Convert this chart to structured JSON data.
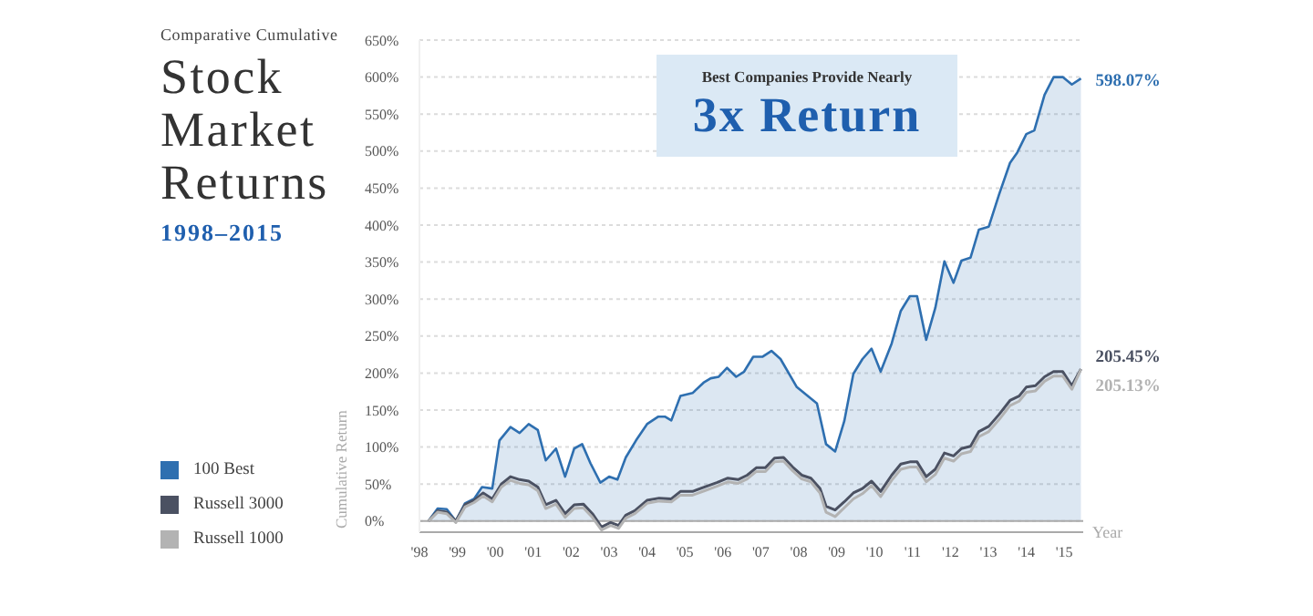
{
  "chart_data": {
    "type": "line",
    "title": "Stock Market Returns",
    "subtitle": "1998–2015",
    "ylabel": "Cumulative Return",
    "xlabel": "Year",
    "annotations": [
      "Comparative Cumulative",
      "Best Companies Provide Nearly",
      "3x Return"
    ],
    "xlim": [
      1998,
      2015.5
    ],
    "ylim": [
      -15,
      650
    ],
    "ref_lines": [
      {
        "axis": "y",
        "value": 0,
        "color": "#aaaaaa"
      }
    ],
    "xticks": [
      {
        "value": 1998,
        "label": "'98"
      },
      {
        "value": 1999,
        "label": "'99"
      },
      {
        "value": 2000,
        "label": "'00"
      },
      {
        "value": 2001,
        "label": "'01"
      },
      {
        "value": 2002,
        "label": "'02"
      },
      {
        "value": 2003,
        "label": "'03"
      },
      {
        "value": 2004,
        "label": "'04"
      },
      {
        "value": 2005,
        "label": "'05"
      },
      {
        "value": 2006,
        "label": "'06"
      },
      {
        "value": 2007,
        "label": "'07"
      },
      {
        "value": 2008,
        "label": "'08"
      },
      {
        "value": 2009,
        "label": "'09"
      },
      {
        "value": 2010,
        "label": "'10"
      },
      {
        "value": 2011,
        "label": "'11"
      },
      {
        "value": 2012,
        "label": "'12"
      },
      {
        "value": 2013,
        "label": "'13"
      },
      {
        "value": 2014,
        "label": "'14"
      },
      {
        "value": 2015,
        "label": "'15"
      }
    ],
    "yticks": [
      {
        "value": 0,
        "label": "0%"
      },
      {
        "value": 50,
        "label": "50%"
      },
      {
        "value": 100,
        "label": "100%"
      },
      {
        "value": 150,
        "label": "150%"
      },
      {
        "value": 200,
        "label": "200%"
      },
      {
        "value": 250,
        "label": "250%"
      },
      {
        "value": 300,
        "label": "300%"
      },
      {
        "value": 350,
        "label": "350%"
      },
      {
        "value": 400,
        "label": "400%"
      },
      {
        "value": 450,
        "label": "450%"
      },
      {
        "value": 500,
        "label": "500%"
      },
      {
        "value": 550,
        "label": "550%"
      },
      {
        "value": 600,
        "label": "600%"
      },
      {
        "value": 650,
        "label": "650%"
      }
    ],
    "grid": "y",
    "legend": "left",
    "series": [
      {
        "name": "100 Best",
        "type": "area",
        "color": "#2e6fb0",
        "x": [
          1998.24,
          1998.48,
          1998.72,
          1998.96,
          1999.2,
          1999.44,
          1999.65,
          1999.92,
          2000.11,
          2000.4,
          2000.64,
          2000.88,
          2001.12,
          2001.33,
          2001.6,
          2001.84,
          2002.08,
          2002.29,
          2002.51,
          2002.77,
          2003.0,
          2003.22,
          2003.44,
          2003.71,
          2004.0,
          2004.29,
          2004.48,
          2004.64,
          2004.88,
          2005.2,
          2005.49,
          2005.68,
          2005.89,
          2006.11,
          2006.35,
          2006.56,
          2006.8,
          2007.04,
          2007.28,
          2007.52,
          2007.95,
          2008.48,
          2008.72,
          2008.96,
          2009.2,
          2009.44,
          2009.68,
          2009.92,
          2010.16,
          2010.45,
          2010.69,
          2010.93,
          2011.12,
          2011.36,
          2011.6,
          2011.84,
          2012.08,
          2012.29,
          2012.53,
          2012.75,
          2013.01,
          2013.28,
          2013.57,
          2013.76,
          2014.0,
          2014.21,
          2014.48,
          2014.72,
          2014.96,
          2015.2,
          2015.44
        ],
        "values": [
          0,
          17,
          16,
          0,
          24,
          30,
          46,
          44,
          109,
          127,
          119,
          131,
          123,
          82,
          98,
          60,
          98,
          104,
          78,
          52,
          60,
          56,
          86,
          109,
          131,
          141,
          141,
          136,
          169,
          173,
          187,
          193,
          195,
          207,
          195,
          202,
          222,
          222,
          230,
          219,
          181,
          159,
          104,
          94,
          135,
          199,
          219,
          233,
          202,
          240,
          284,
          304,
          304,
          245,
          288,
          351,
          322,
          352,
          356,
          394,
          398,
          441,
          484,
          498,
          523,
          528,
          576,
          600,
          600,
          590,
          598.07
        ],
        "value_labels": [
          null,
          null,
          null,
          null,
          null,
          null,
          null,
          null,
          null,
          null,
          null,
          null,
          null,
          null,
          null,
          null,
          null,
          null,
          null,
          null,
          null,
          null,
          null,
          null,
          null,
          null,
          null,
          null,
          null,
          null,
          null,
          null,
          null,
          null,
          null,
          null,
          null,
          null,
          null,
          null,
          null,
          null,
          null,
          null,
          null,
          null,
          null,
          null,
          null,
          null,
          null,
          null,
          null,
          null,
          null,
          null,
          null,
          null,
          null,
          null,
          null,
          null,
          null,
          null,
          null,
          null,
          null,
          null,
          null,
          null,
          "598.07%"
        ]
      },
      {
        "name": "Russell 3000",
        "type": "line",
        "color": "#4b5162",
        "x": [
          1998.24,
          1998.48,
          1998.72,
          1998.96,
          1999.2,
          1999.44,
          1999.68,
          1999.92,
          2000.16,
          2000.4,
          2000.64,
          2000.88,
          2001.12,
          2001.33,
          2001.6,
          2001.84,
          2002.08,
          2002.32,
          2002.56,
          2002.8,
          2003.04,
          2003.25,
          2003.44,
          2003.68,
          2004.0,
          2004.32,
          2004.64,
          2004.88,
          2005.2,
          2005.52,
          2005.84,
          2006.13,
          2006.4,
          2006.64,
          2006.88,
          2007.12,
          2007.36,
          2007.6,
          2007.84,
          2008.08,
          2008.32,
          2008.56,
          2008.72,
          2008.96,
          2009.2,
          2009.44,
          2009.68,
          2009.92,
          2010.16,
          2010.45,
          2010.69,
          2010.93,
          2011.12,
          2011.36,
          2011.6,
          2011.84,
          2012.08,
          2012.29,
          2012.53,
          2012.75,
          2013.01,
          2013.28,
          2013.57,
          2013.81,
          2014.0,
          2014.24,
          2014.48,
          2014.72,
          2014.96,
          2015.2,
          2015.44
        ],
        "values": [
          0,
          14,
          12,
          0,
          22,
          28,
          38,
          30,
          50,
          60,
          56,
          54,
          46,
          22,
          28,
          10,
          22,
          23,
          10,
          -8,
          -2,
          -6,
          8,
          14,
          28,
          31,
          30,
          40,
          40,
          46,
          52,
          58,
          56,
          62,
          72,
          72,
          85,
          86,
          73,
          62,
          58,
          44,
          20,
          15,
          26,
          38,
          44,
          54,
          40,
          62,
          77,
          80,
          80,
          60,
          70,
          92,
          88,
          98,
          101,
          121,
          128,
          144,
          163,
          169,
          181,
          183,
          195,
          202,
          202,
          183,
          205.45
        ],
        "value_labels": [
          null,
          null,
          null,
          null,
          null,
          null,
          null,
          null,
          null,
          null,
          null,
          null,
          null,
          null,
          null,
          null,
          null,
          null,
          null,
          null,
          null,
          null,
          null,
          null,
          null,
          null,
          null,
          null,
          null,
          null,
          null,
          null,
          null,
          null,
          null,
          null,
          null,
          null,
          null,
          null,
          null,
          null,
          null,
          null,
          null,
          null,
          null,
          null,
          null,
          null,
          null,
          null,
          null,
          null,
          null,
          null,
          null,
          null,
          null,
          null,
          null,
          null,
          null,
          null,
          null,
          null,
          null,
          null,
          null,
          null,
          "205.45%"
        ]
      },
      {
        "name": "Russell 1000",
        "type": "line",
        "color": "#b3b3b3",
        "x": [
          1998.24,
          1998.48,
          1998.72,
          1998.96,
          1999.2,
          1999.44,
          1999.68,
          1999.92,
          2000.16,
          2000.4,
          2000.64,
          2000.88,
          2001.12,
          2001.33,
          2001.6,
          2001.84,
          2002.08,
          2002.32,
          2002.56,
          2002.8,
          2003.04,
          2003.25,
          2003.44,
          2003.68,
          2004.0,
          2004.32,
          2004.64,
          2004.88,
          2005.2,
          2005.52,
          2005.84,
          2006.13,
          2006.4,
          2006.64,
          2006.88,
          2007.12,
          2007.36,
          2007.6,
          2007.84,
          2008.08,
          2008.32,
          2008.56,
          2008.72,
          2008.96,
          2009.2,
          2009.44,
          2009.68,
          2009.92,
          2010.16,
          2010.45,
          2010.69,
          2010.93,
          2011.12,
          2011.36,
          2011.6,
          2011.84,
          2012.08,
          2012.29,
          2012.53,
          2012.75,
          2013.01,
          2013.28,
          2013.57,
          2013.81,
          2014.0,
          2014.24,
          2014.48,
          2014.72,
          2014.96,
          2015.2,
          2015.44
        ],
        "values": [
          0,
          12,
          10,
          -2,
          19,
          25,
          34,
          26,
          46,
          55,
          51,
          49,
          41,
          17,
          23,
          5,
          17,
          18,
          5,
          -12,
          -6,
          -10,
          4,
          10,
          24,
          27,
          26,
          35,
          35,
          41,
          47,
          53,
          51,
          57,
          67,
          67,
          80,
          81,
          68,
          57,
          53,
          38,
          12,
          6,
          18,
          30,
          37,
          48,
          33,
          55,
          70,
          73,
          73,
          53,
          63,
          85,
          81,
          91,
          94,
          114,
          121,
          137,
          156,
          162,
          174,
          176,
          189,
          196,
          196,
          178,
          205.13
        ],
        "value_labels": [
          null,
          null,
          null,
          null,
          null,
          null,
          null,
          null,
          null,
          null,
          null,
          null,
          null,
          null,
          null,
          null,
          null,
          null,
          null,
          null,
          null,
          null,
          null,
          null,
          null,
          null,
          null,
          null,
          null,
          null,
          null,
          null,
          null,
          null,
          null,
          null,
          null,
          null,
          null,
          null,
          null,
          null,
          null,
          null,
          null,
          null,
          null,
          null,
          null,
          null,
          null,
          null,
          null,
          null,
          null,
          null,
          null,
          null,
          null,
          null,
          null,
          null,
          null,
          null,
          null,
          null,
          null,
          null,
          null,
          null,
          "205.13%"
        ]
      }
    ]
  }
}
